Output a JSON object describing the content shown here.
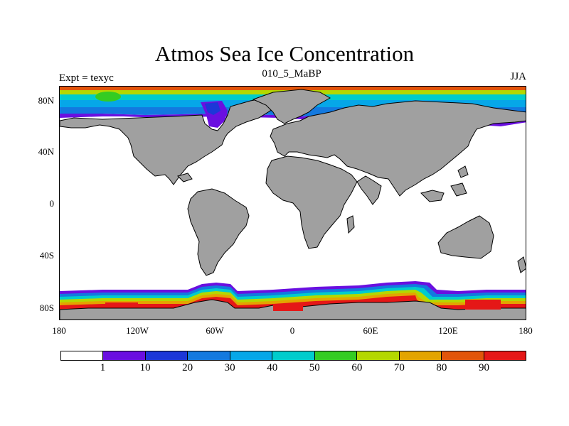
{
  "title": "Atmos Sea Ice Concentration",
  "subtitle": "010_5_MaBP",
  "left_label": "Expt = texyc",
  "right_label": "JJA",
  "y_axis": {
    "ticks": [
      "80N",
      "40N",
      "0",
      "40S",
      "80S"
    ]
  },
  "x_axis": {
    "ticks": [
      "180",
      "120W",
      "60W",
      "0",
      "60E",
      "120E",
      "180"
    ]
  },
  "colorbar": {
    "levels": [
      "1",
      "10",
      "20",
      "30",
      "40",
      "50",
      "60",
      "70",
      "80",
      "90"
    ],
    "colors": [
      "#ffffff",
      "#6a0fe0",
      "#1c37d8",
      "#1379df",
      "#06a7e8",
      "#00cccc",
      "#34cc22",
      "#b4d800",
      "#e3a400",
      "#e2550a",
      "#e51717"
    ]
  },
  "land_color": "#a0a0a0"
}
